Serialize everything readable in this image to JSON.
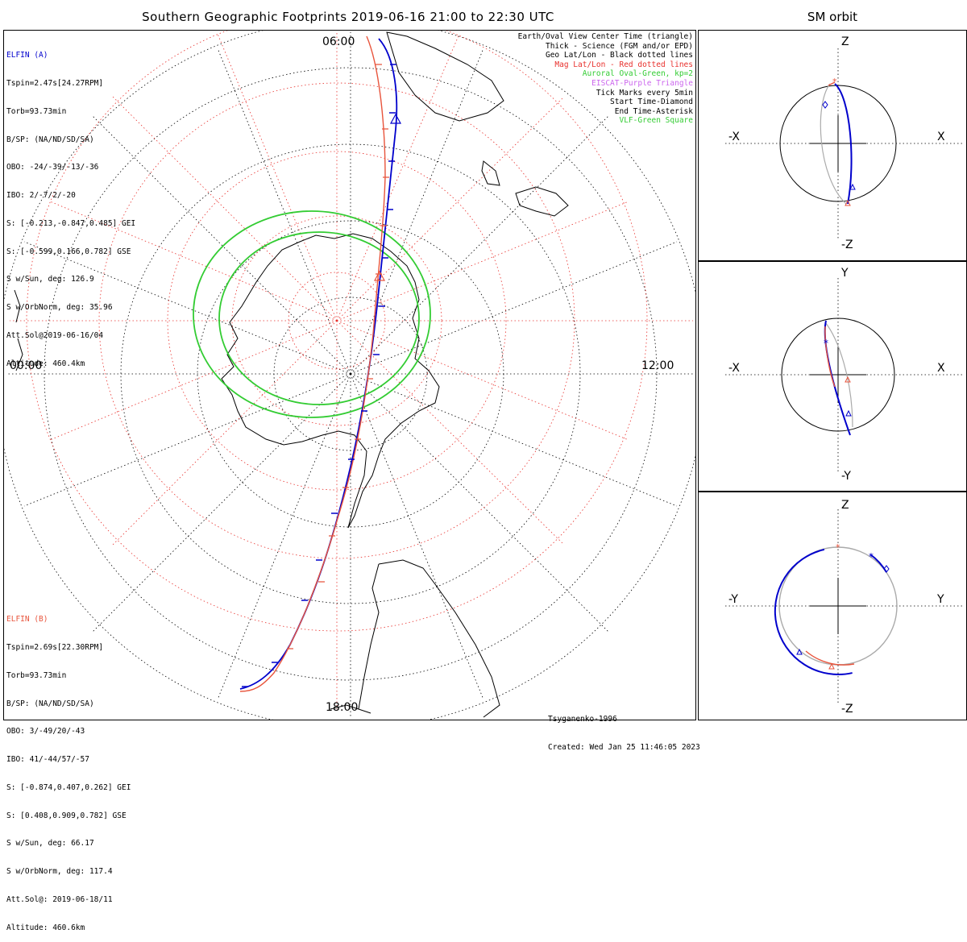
{
  "title": "Southern Geographic Footprints 2019-06-16 21:00 to 22:30 UTC",
  "sm_title": "SM orbit",
  "colors": {
    "elfin_a": "#0000cc",
    "elfin_b": "#e8543c",
    "geo_grid": "#000000",
    "mag_grid": "#e8302c",
    "auroral_oval": "#33cc33",
    "eiscat": "#cc66ee",
    "vlf": "#33cc33"
  },
  "elfin_a": {
    "name": "ELFIN (A)",
    "lines": [
      "Tspin=2.47s[24.27RPM]",
      "Torb=93.73min",
      "B/SP: (NA/ND/SD/SA)",
      "OBO: -24/-39/-13/-36",
      "IBO: 2/-7/2/-20",
      "S: [-0.213,-0.847,0.485] GEI",
      "S: [-0.599,0.166,0.782] GSE",
      "S w/Sun, deg: 126.9",
      "S w/OrbNorm, deg: 35.96",
      "Att.Sol@2019-06-16/04",
      "Altitude: 460.4km"
    ]
  },
  "elfin_b": {
    "name": "ELFIN (B)",
    "lines": [
      "Tspin=2.69s[22.30RPM]",
      "Torb=93.73min",
      "B/SP: (NA/ND/SD/SA)",
      "OBO: 3/-49/20/-43",
      "IBO: 41/-44/57/-57",
      "S: [-0.874,0.407,0.262] GEI",
      "S: [0.408,0.909,0.782] GSE",
      "S w/Sun, deg: 66.17",
      "S w/OrbNorm, deg: 117.4",
      "Att.Sol@: 2019-06-18/11",
      "Altitude: 460.6km"
    ]
  },
  "legend": [
    {
      "text": "Earth/Oval View Center Time (triangle)",
      "color": "#000000"
    },
    {
      "text": "Thick - Science (FGM and/or EPD)",
      "color": "#000000"
    },
    {
      "text": "Geo Lat/Lon - Black dotted lines",
      "color": "#000000"
    },
    {
      "text": "Mag Lat/Lon - Red dotted lines",
      "color": "#e8302c"
    },
    {
      "text": "Auroral Oval-Green, kp=2",
      "color": "#33cc33"
    },
    {
      "text": "EISCAT-Purple Triangle",
      "color": "#cc66ee"
    },
    {
      "text": "Tick Marks every 5min",
      "color": "#000000"
    },
    {
      "text": "Start Time-Diamond",
      "color": "#000000"
    },
    {
      "text": "End Time-Asterisk",
      "color": "#000000"
    },
    {
      "text": "VLF-Green Square",
      "color": "#33cc33"
    }
  ],
  "map_labels": {
    "top": "06:00",
    "left": "00:00",
    "right": "12:00",
    "bottom": "18:00"
  },
  "credits": {
    "model": "Tsyganenko-1996",
    "created": "Created: Wed Jan 25 11:46:05 2023"
  },
  "sm_panels": [
    {
      "name": "xz",
      "top": "Z",
      "bottom": "-Z",
      "left": "-X",
      "right": "X"
    },
    {
      "name": "xy",
      "top": "Y",
      "bottom": "-Y",
      "left": "-X",
      "right": "X"
    },
    {
      "name": "yz",
      "top": "Z",
      "bottom": "-Z",
      "left": "-Y",
      "right": "Y"
    }
  ]
}
